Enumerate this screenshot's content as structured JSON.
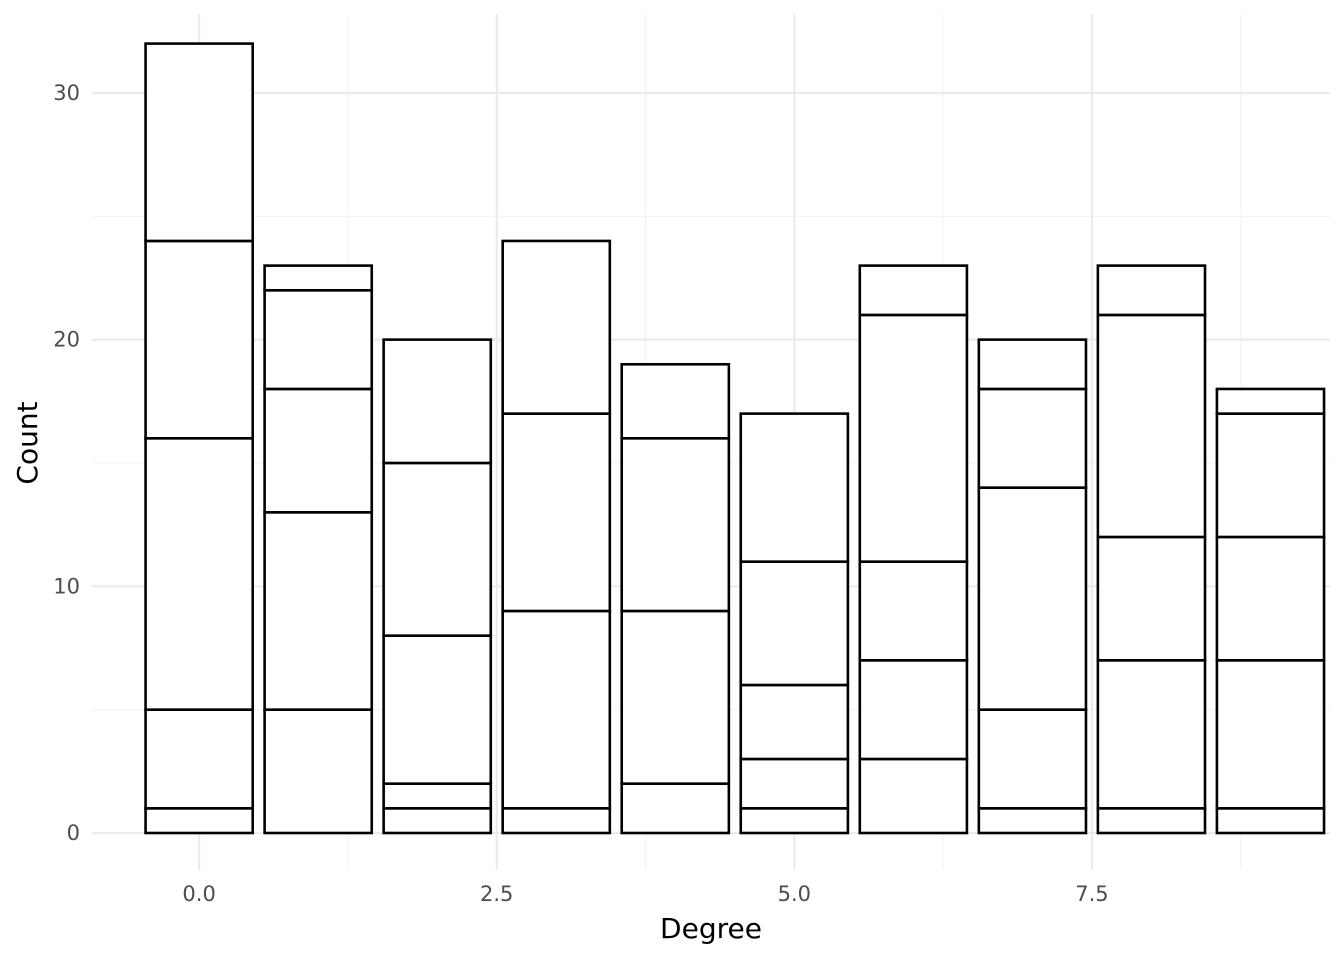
{
  "chart_data": {
    "type": "bar",
    "stacked": true,
    "title": "",
    "xlabel": "Degree",
    "ylabel": "Count",
    "xlim": [
      -0.9,
      9.5
    ],
    "ylim": [
      -1.5,
      33.2
    ],
    "x_ticks": [
      0.0,
      2.5,
      5.0,
      7.5
    ],
    "x_tick_labels": [
      "0.0",
      "2.5",
      "5.0",
      "7.5"
    ],
    "y_ticks": [
      0,
      10,
      20,
      30
    ],
    "y_tick_labels": [
      "0",
      "10",
      "20",
      "30"
    ],
    "grid": true,
    "bar_width": 0.9,
    "bar_fill": "#ffffff",
    "bar_outline": "#000000",
    "bars": [
      {
        "x": 0,
        "segments": [
          1,
          4,
          11,
          8,
          8
        ],
        "total": 32
      },
      {
        "x": 1,
        "segments": [
          5,
          8,
          5,
          4,
          1
        ],
        "total": 23
      },
      {
        "x": 2,
        "segments": [
          1,
          1,
          6,
          7,
          5
        ],
        "total": 20
      },
      {
        "x": 3,
        "segments": [
          1,
          8,
          8,
          7
        ],
        "total": 24
      },
      {
        "x": 4,
        "segments": [
          2,
          7,
          7,
          3
        ],
        "total": 19
      },
      {
        "x": 5,
        "segments": [
          1,
          2,
          3,
          5,
          6
        ],
        "total": 17
      },
      {
        "x": 6,
        "segments": [
          3,
          4,
          4,
          10,
          2
        ],
        "total": 23
      },
      {
        "x": 7,
        "segments": [
          1,
          4,
          9,
          4,
          2
        ],
        "total": 20
      },
      {
        "x": 8,
        "segments": [
          1,
          6,
          5,
          9,
          2
        ],
        "total": 23
      },
      {
        "x": 9,
        "segments": [
          1,
          6,
          5,
          5,
          1
        ],
        "total": 18
      }
    ]
  }
}
